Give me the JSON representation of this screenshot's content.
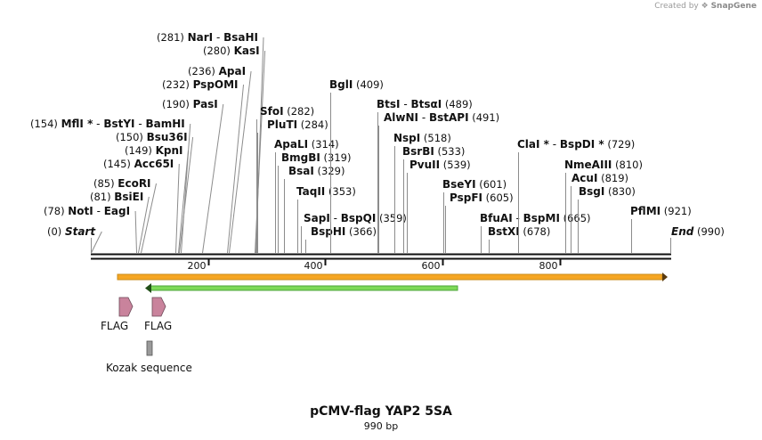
{
  "credit": {
    "prefix": "Created by",
    "brand": "SnapGene"
  },
  "title": "pCMV-flag YAP2 5SA",
  "subtitle": "990 bp",
  "colors": {
    "backbone": "#111111",
    "orange_bar": "#f5a623",
    "orange_border": "#c98b19",
    "green_bar": "#7ed957",
    "green_border": "#4ca53a",
    "flag_feature": "#c9839c",
    "kozak_feature": "#9a9a9a"
  },
  "scale": {
    "total_bp": 990,
    "ticks": [
      200,
      400,
      600,
      800
    ]
  },
  "labels": [
    {
      "pos": "(281)",
      "name": "NarI",
      "sep": "-",
      "name2": "BsaHI",
      "bp": 281
    },
    {
      "pos": "(280)",
      "name": "KasI",
      "bp": 280
    },
    {
      "pos": "(236)",
      "name": "ApaI",
      "bp": 236
    },
    {
      "pos": "(232)",
      "name": "PspOMI",
      "bp": 232
    },
    {
      "pos": "(190)",
      "name": "PasI",
      "bp": 190
    },
    {
      "pos": "(154)",
      "name": "MflI *",
      "sep": "-",
      "name2": "BstYI",
      "sep2": "-",
      "name3": "BamHI",
      "bp": 154
    },
    {
      "pos": "(150)",
      "name": "Bsu36I",
      "bp": 150
    },
    {
      "pos": "(149)",
      "name": "KpnI",
      "bp": 149
    },
    {
      "pos": "(145)",
      "name": "Acc65I",
      "bp": 145
    },
    {
      "pos": "(85)",
      "name": "EcoRI",
      "bp": 85
    },
    {
      "pos": "(81)",
      "name": "BsiEI",
      "bp": 81
    },
    {
      "pos": "(78)",
      "name": "NotI",
      "sep": "-",
      "name2": "EagI",
      "bp": 78
    },
    {
      "pos": "(0)",
      "name": "Start",
      "bp": 0,
      "italic": true
    },
    {
      "name": "SfoI",
      "pos": "(282)",
      "bp": 282
    },
    {
      "name": "PluTI",
      "pos": "(284)",
      "bp": 284
    },
    {
      "name": "ApaLI",
      "pos": "(314)",
      "bp": 314
    },
    {
      "name": "BmgBI",
      "pos": "(319)",
      "bp": 319
    },
    {
      "name": "BsaI",
      "pos": "(329)",
      "bp": 329
    },
    {
      "name": "TaqII",
      "pos": "(353)",
      "bp": 353
    },
    {
      "name": "SapI",
      "sep": "-",
      "name2": "BspQI",
      "pos": "(359)",
      "bp": 359
    },
    {
      "name": "BspHI",
      "pos": "(366)",
      "bp": 366
    },
    {
      "name": "BglI",
      "pos": "(409)",
      "bp": 409
    },
    {
      "name": "BtsI",
      "sep": "-",
      "name2": "BtsαI",
      "pos": "(489)",
      "bp": 489
    },
    {
      "name": "AlwNI",
      "sep": "-",
      "name2": "BstAPI",
      "pos": "(491)",
      "bp": 491
    },
    {
      "name": "NspI",
      "pos": "(518)",
      "bp": 518
    },
    {
      "name": "BsrBI",
      "pos": "(533)",
      "bp": 533
    },
    {
      "name": "PvuII",
      "pos": "(539)",
      "bp": 539
    },
    {
      "name": "BseYI",
      "pos": "(601)",
      "bp": 601
    },
    {
      "name": "PspFI",
      "pos": "(605)",
      "bp": 605
    },
    {
      "name": "BfuAI",
      "sep": "-",
      "name2": "BspMI",
      "pos": "(665)",
      "bp": 665
    },
    {
      "name": "BstXI",
      "pos": "(678)",
      "bp": 678
    },
    {
      "name": "ClaI *",
      "sep": "-",
      "name2": "BspDI *",
      "pos": "(729)",
      "bp": 729
    },
    {
      "name": "NmeAIII",
      "pos": "(810)",
      "bp": 810
    },
    {
      "name": "AcuI",
      "pos": "(819)",
      "bp": 819
    },
    {
      "name": "BsgI",
      "pos": "(830)",
      "bp": 830
    },
    {
      "name": "PflMI",
      "pos": "(921)",
      "bp": 921
    },
    {
      "name": "End",
      "pos": "(990)",
      "bp": 990,
      "italic": true
    }
  ],
  "features": [
    {
      "name": "FLAG",
      "start_bp": 48,
      "end_bp": 72,
      "type": "flag"
    },
    {
      "name": "FLAG",
      "start_bp": 106,
      "end_bp": 130,
      "type": "flag"
    },
    {
      "name": "Kozak sequence",
      "start_bp": 98,
      "end_bp": 108,
      "type": "kozak"
    }
  ]
}
